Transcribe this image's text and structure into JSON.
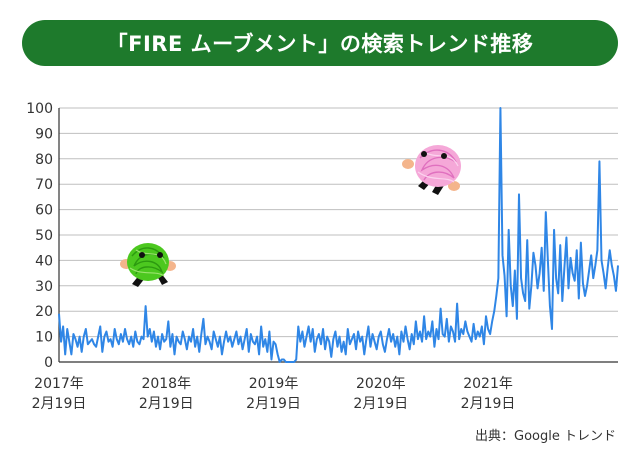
{
  "title": "「FIRE ムーブメント」の検索トレンド推移",
  "source": "出典：Google トレンド",
  "colors": {
    "banner": "#1e7a2c",
    "line": "#2f86e6",
    "axis": "#333333",
    "grid": "#bfbfbf",
    "mascot_green": "#4cc81f",
    "mascot_pink": "#f5a8d8"
  },
  "icons": [
    "green-mascot-icon",
    "pink-mascot-icon"
  ],
  "chart_data": {
    "type": "line",
    "title": "「FIRE ムーブメント」の検索トレンド推移",
    "xlabel": "",
    "ylabel": "",
    "ylim": [
      0,
      100
    ],
    "yticks": [
      0,
      10,
      20,
      30,
      40,
      50,
      60,
      70,
      80,
      90,
      100
    ],
    "xticks": [
      {
        "line1": "2017年",
        "line2": "2月19日",
        "week": 0
      },
      {
        "line1": "2018年",
        "line2": "2月19日",
        "week": 52
      },
      {
        "line1": "2019年",
        "line2": "2月19日",
        "week": 104
      },
      {
        "line1": "2020年",
        "line2": "2月19日",
        "week": 156
      },
      {
        "line1": "2021年",
        "line2": "2月19日",
        "week": 208
      }
    ],
    "x_unit": "week",
    "grid": true,
    "legend": "none",
    "series": [
      {
        "values": [
          19,
          8,
          14,
          3,
          13,
          8,
          3,
          11,
          9,
          6,
          10,
          4,
          10,
          13,
          7,
          8,
          9,
          7,
          6,
          10,
          14,
          4,
          10,
          12,
          8,
          9,
          6,
          13,
          9,
          7,
          11,
          8,
          13,
          9,
          7,
          10,
          6,
          12,
          8,
          7,
          10,
          9,
          22,
          10,
          13,
          8,
          12,
          6,
          10,
          5,
          11,
          8,
          9,
          16,
          6,
          11,
          3,
          10,
          8,
          7,
          12,
          9,
          5,
          10,
          8,
          13,
          6,
          10,
          4,
          11,
          17,
          7,
          10,
          8,
          5,
          12,
          9,
          6,
          10,
          3,
          8,
          12,
          8,
          10,
          6,
          9,
          12,
          7,
          10,
          5,
          9,
          13,
          4,
          11,
          8,
          7,
          10,
          3,
          14,
          6,
          9,
          4,
          12,
          1,
          8,
          7,
          3,
          0,
          1,
          1,
          0,
          0,
          0,
          0,
          0,
          1,
          14,
          8,
          12,
          6,
          10,
          14,
          8,
          13,
          4,
          9,
          11,
          7,
          13,
          5,
          10,
          8,
          2,
          9,
          12,
          6,
          10,
          4,
          8,
          3,
          13,
          7,
          9,
          11,
          5,
          12,
          8,
          10,
          3,
          9,
          14,
          6,
          11,
          8,
          5,
          10,
          12,
          7,
          4,
          9,
          13,
          8,
          11,
          6,
          10,
          3,
          12,
          8,
          14,
          9,
          5,
          11,
          7,
          16,
          9,
          12,
          8,
          18,
          9,
          12,
          10,
          16,
          6,
          13,
          9,
          21,
          11,
          10,
          17,
          8,
          14,
          12,
          8,
          23,
          9,
          13,
          11,
          16,
          12,
          10,
          8,
          15,
          9,
          12,
          10,
          14,
          7,
          18,
          13,
          11,
          16,
          20,
          26,
          33,
          100,
          42,
          34,
          18,
          52,
          30,
          22,
          36,
          17,
          66,
          33,
          27,
          24,
          48,
          21,
          30,
          43,
          38,
          29,
          35,
          45,
          28,
          59,
          40,
          22,
          13,
          52,
          33,
          27,
          46,
          24,
          37,
          49,
          29,
          41,
          35,
          32,
          44,
          25,
          47,
          31,
          26,
          30,
          36,
          42,
          33,
          38,
          44,
          79,
          40,
          35,
          29,
          37,
          44,
          38,
          34,
          28,
          38
        ]
      }
    ]
  }
}
